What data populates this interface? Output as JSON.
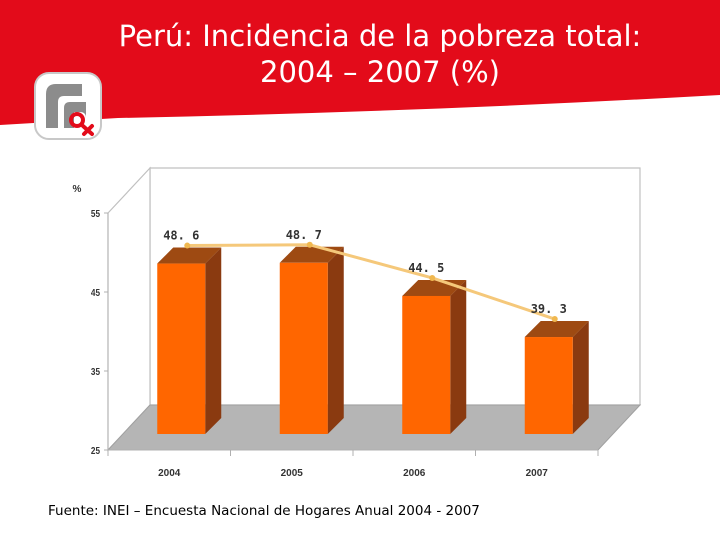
{
  "header": {
    "title_line1": "Perú: Incidencia de la pobreza total:",
    "title_line2": "2004 – 2007 (%)",
    "banner_color": "#e30b1a",
    "logo_icon": "inei-logo-icon"
  },
  "chart_data": {
    "type": "bar",
    "title": "Perú: Incidencia de la pobreza total: 2004 – 2007 (%)",
    "ylabel": "%",
    "xlabel": "",
    "categories": [
      "2004",
      "2005",
      "2006",
      "2007"
    ],
    "values": [
      48.6,
      48.7,
      44.5,
      39.3
    ],
    "value_labels": [
      "48. 6",
      "48. 7",
      "44. 5",
      "39. 3"
    ],
    "ylim": [
      25,
      55
    ],
    "yticks": [
      "25",
      "35",
      "45",
      "55"
    ],
    "grid": false,
    "legend": "none",
    "overlay_line": true,
    "colors": {
      "bar": "#ff6600",
      "bar_side": "#8a3a10",
      "line": "#f5c87a",
      "floor": "#b5b5b5"
    }
  },
  "footer": {
    "source": "Fuente: INEI – Encuesta Nacional de Hogares Anual 2004 - 2007"
  }
}
